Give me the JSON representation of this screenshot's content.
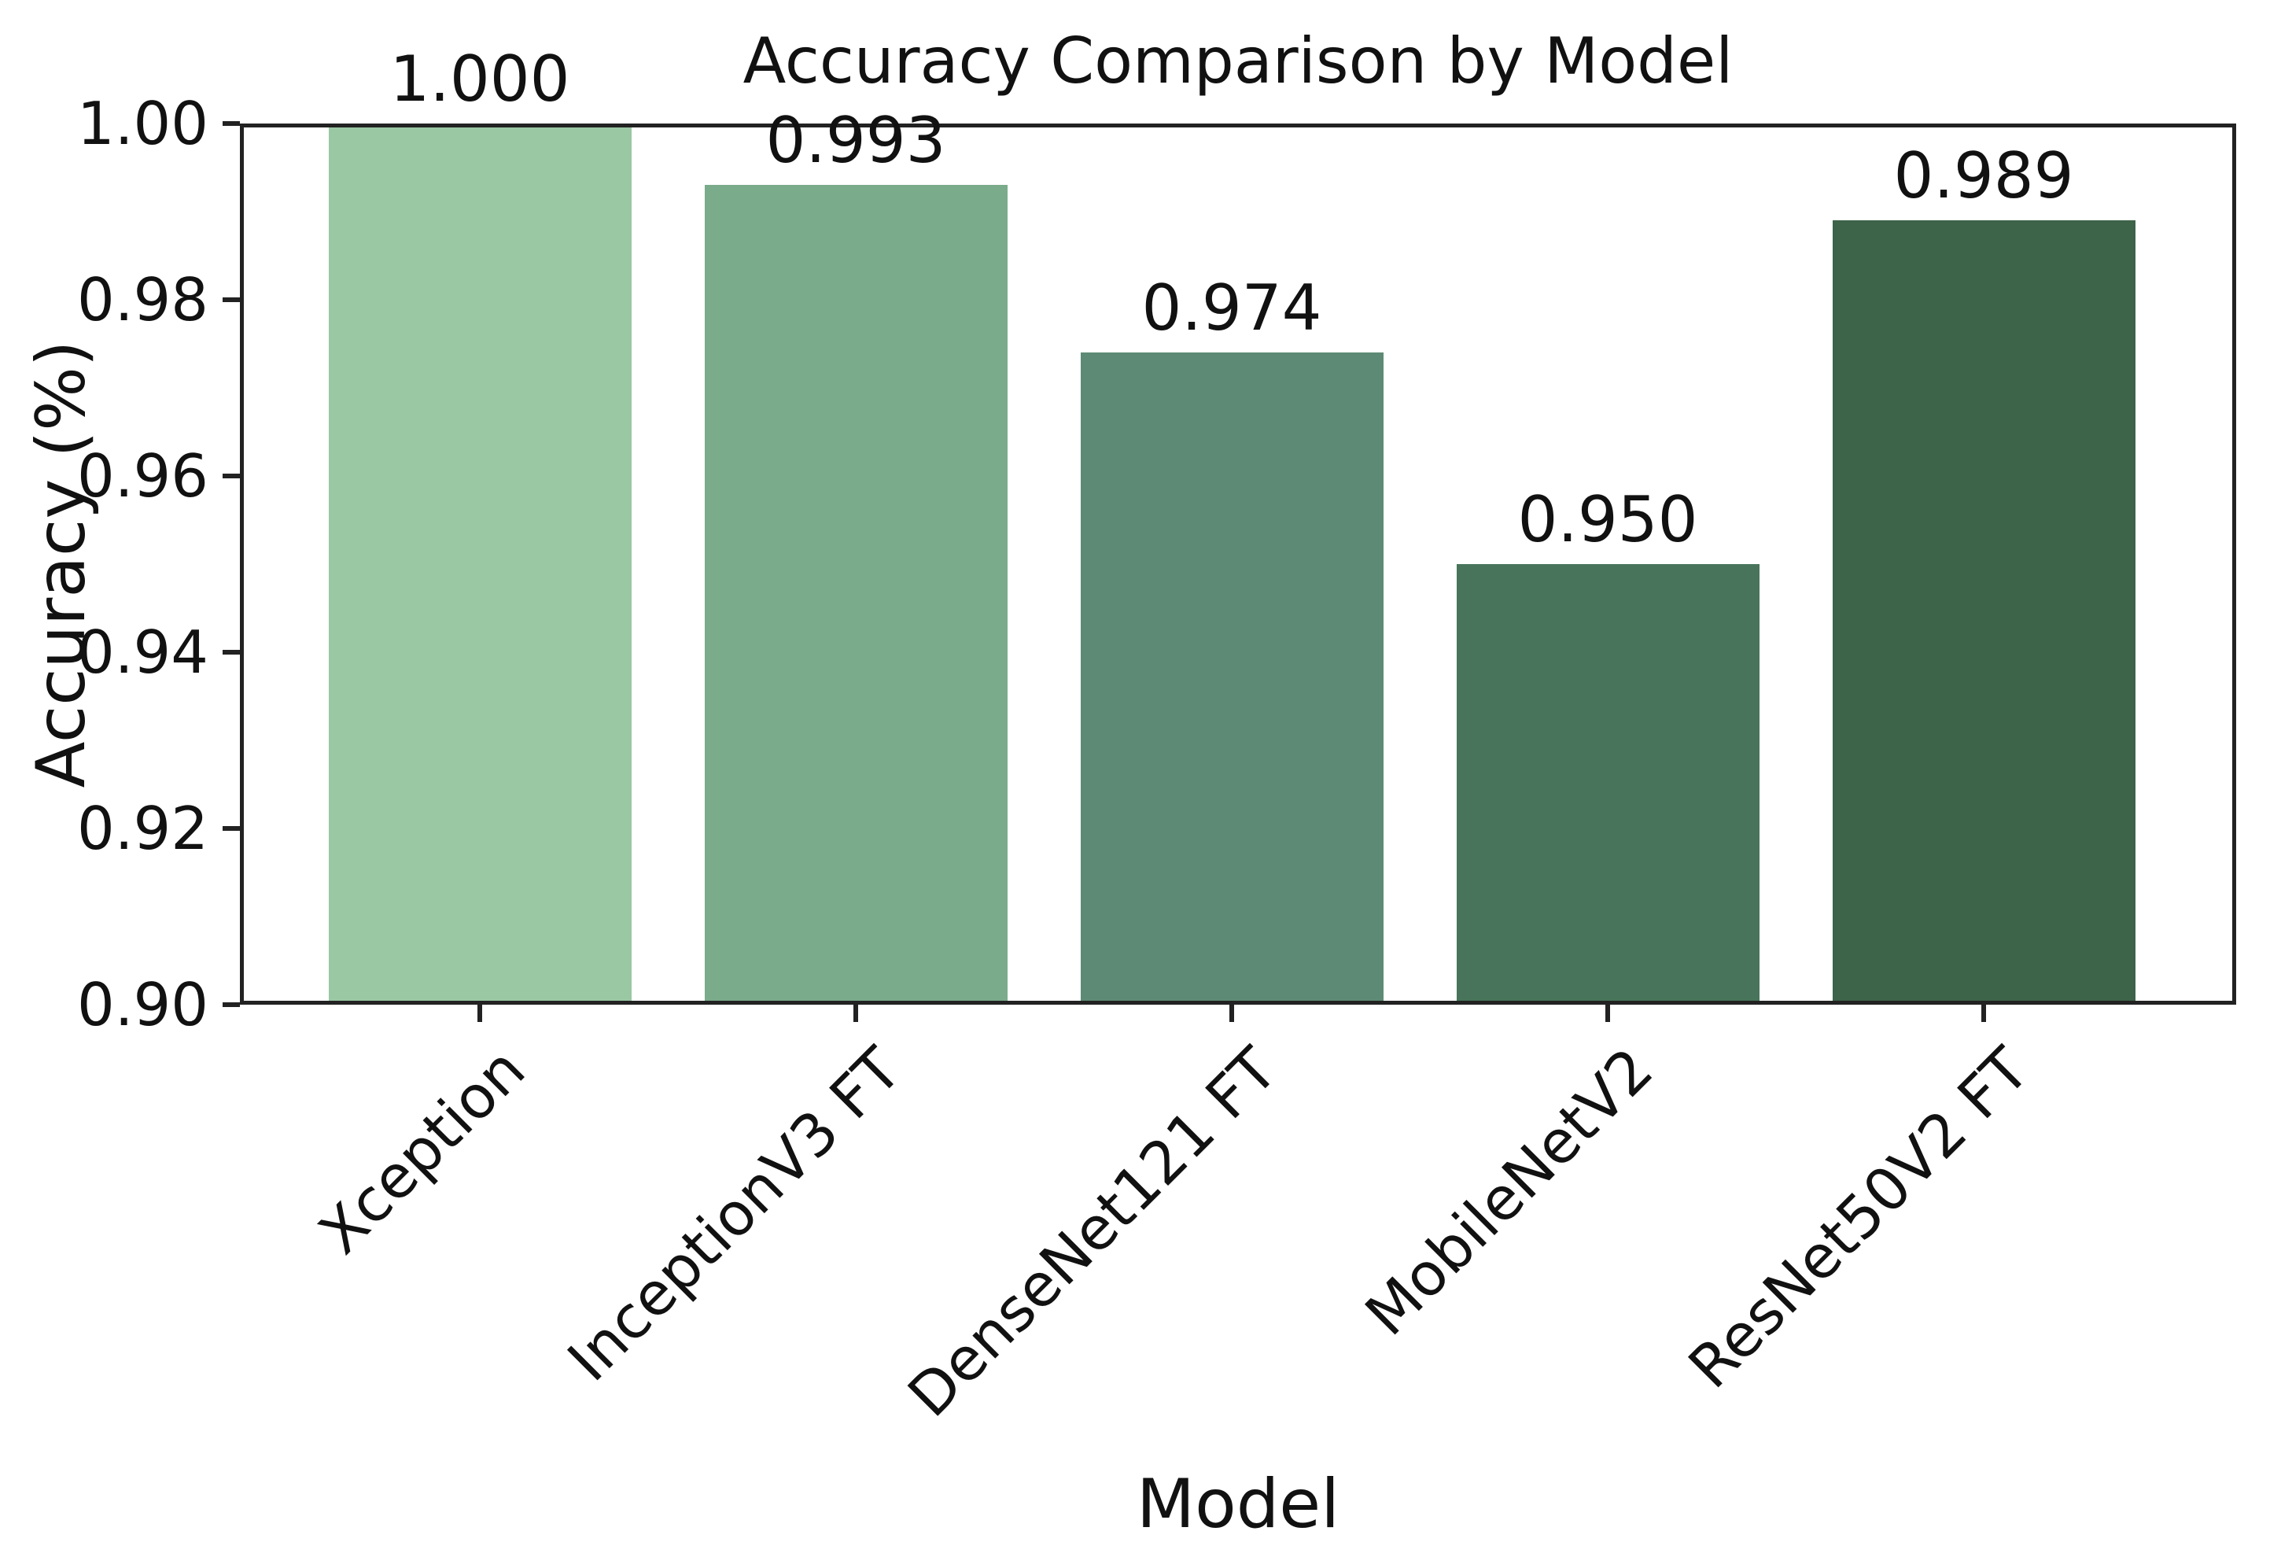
{
  "chart_data": {
    "type": "bar",
    "title": "Accuracy Comparison by Model",
    "xlabel": "Model",
    "ylabel": "Accuracy (%)",
    "categories": [
      "Xception",
      "InceptionV3 FT",
      "DenseNet121 FT",
      "MobileNetV2",
      "ResNet50V2 FT"
    ],
    "values": [
      1.0,
      0.993,
      0.974,
      0.95,
      0.989
    ],
    "value_labels": [
      "1.000",
      "0.993",
      "0.974",
      "0.950",
      "0.989"
    ],
    "bar_colors": [
      "#9ac8a3",
      "#7aab8b",
      "#5d8a74",
      "#47745a",
      "#3d6349"
    ],
    "ylim": [
      0.9,
      1.0
    ],
    "ytick_labels": [
      "0.90",
      "0.92",
      "0.94",
      "0.96",
      "0.98",
      "1.00"
    ],
    "xtick_rotation_deg": 45,
    "grid": false,
    "legend_position": "none",
    "spine_color": "#222222",
    "background_color": "#ffffff"
  }
}
